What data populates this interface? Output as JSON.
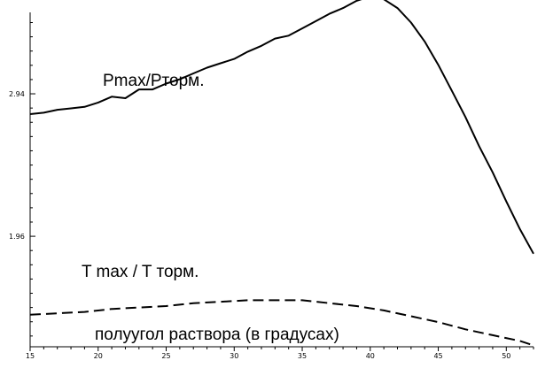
{
  "chart_data": {
    "type": "line",
    "title": "",
    "xlabel": "",
    "ylabel": "",
    "xlim": [
      15,
      52
    ],
    "ylim": [
      1.2,
      3.5
    ],
    "x_ticks": [
      15,
      20,
      25,
      30,
      35,
      40,
      45,
      50
    ],
    "y_ticks": [
      1.96,
      2.94
    ],
    "y_tick_labels": [
      "1.96",
      "2.94"
    ],
    "grid": false,
    "legend": "none",
    "series": [
      {
        "name": "Pmax/Pторм.",
        "style": "solid",
        "color": "#000000",
        "x": [
          15,
          16,
          17,
          18,
          19,
          20,
          21,
          22,
          23,
          24,
          25,
          26,
          27,
          28,
          29,
          30,
          31,
          32,
          33,
          34,
          35,
          36,
          37,
          38,
          39,
          40,
          41,
          42,
          43,
          44,
          45,
          46,
          47,
          48,
          49,
          50,
          51,
          52
        ],
        "values": [
          2.8,
          2.81,
          2.83,
          2.84,
          2.85,
          2.88,
          2.92,
          2.91,
          2.97,
          2.97,
          3.01,
          3.04,
          3.08,
          3.12,
          3.15,
          3.18,
          3.23,
          3.27,
          3.32,
          3.34,
          3.39,
          3.44,
          3.49,
          3.53,
          3.58,
          3.61,
          3.59,
          3.53,
          3.43,
          3.3,
          3.14,
          2.96,
          2.78,
          2.58,
          2.4,
          2.2,
          2.01,
          1.84
        ]
      },
      {
        "name": "T max / T торм.",
        "style": "dashed",
        "color": "#000000",
        "x": [
          15,
          17,
          19,
          21,
          23,
          25,
          27,
          29,
          31,
          33,
          35,
          37,
          39,
          41,
          43,
          45,
          47,
          49,
          51,
          52
        ],
        "values": [
          1.42,
          1.43,
          1.44,
          1.46,
          1.47,
          1.48,
          1.5,
          1.51,
          1.52,
          1.52,
          1.52,
          1.5,
          1.48,
          1.45,
          1.41,
          1.37,
          1.32,
          1.28,
          1.24,
          1.21
        ]
      }
    ],
    "annotations": [
      {
        "id": "p-label",
        "text": "Pmax/Pторм."
      },
      {
        "id": "t-label",
        "text": "T max / T торм."
      },
      {
        "id": "x-caption",
        "text": "полуугол раствора (в градусах)"
      }
    ]
  }
}
